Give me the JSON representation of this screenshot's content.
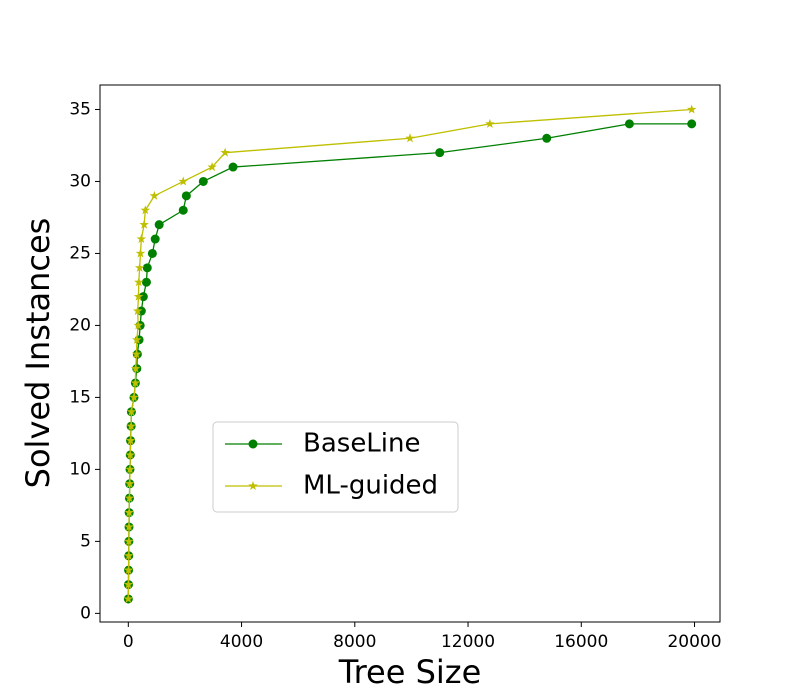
{
  "chart_data": {
    "type": "line",
    "xlabel": "Tree Size",
    "ylabel": "Solved Instances",
    "xlim": [
      -1000,
      20900
    ],
    "ylim": [
      -0.6,
      36.7
    ],
    "xticks": [
      0,
      4000,
      8000,
      12000,
      16000,
      20000
    ],
    "yticks": [
      0,
      5,
      10,
      15,
      20,
      25,
      30,
      35
    ],
    "grid": false,
    "legend_position": "center-left",
    "series": [
      {
        "name": "BaseLine",
        "color": "#008000",
        "marker": "o",
        "x": [
          0,
          5,
          10,
          15,
          20,
          25,
          30,
          40,
          50,
          60,
          70,
          80,
          100,
          110,
          200,
          250,
          300,
          320,
          380,
          420,
          460,
          530,
          640,
          670,
          850,
          950,
          1090,
          1940,
          2050,
          2650,
          3700,
          11000,
          14780,
          17700,
          19900
        ],
        "values": [
          1,
          2,
          3,
          4,
          5,
          6,
          7,
          8,
          9,
          10,
          11,
          12,
          13,
          14,
          15,
          16,
          17,
          18,
          19,
          20,
          21,
          22,
          23,
          24,
          25,
          26,
          27,
          28,
          29,
          30,
          31,
          32,
          33,
          34,
          34
        ]
      },
      {
        "name": "ML-guided",
        "color": "#bfbf00",
        "marker": "*",
        "x": [
          0,
          5,
          10,
          15,
          20,
          25,
          30,
          40,
          50,
          60,
          70,
          80,
          100,
          110,
          200,
          250,
          260,
          290,
          300,
          350,
          330,
          360,
          370,
          400,
          430,
          460,
          560,
          600,
          920,
          1940,
          2960,
          3420,
          9950,
          12770,
          19900
        ],
        "values": [
          1,
          2,
          3,
          4,
          5,
          6,
          7,
          8,
          9,
          10,
          11,
          12,
          13,
          14,
          15,
          16,
          17,
          18,
          19,
          20,
          21,
          22,
          23,
          24,
          25,
          26,
          27,
          28,
          29,
          30,
          31,
          32,
          33,
          34,
          35
        ]
      }
    ]
  }
}
